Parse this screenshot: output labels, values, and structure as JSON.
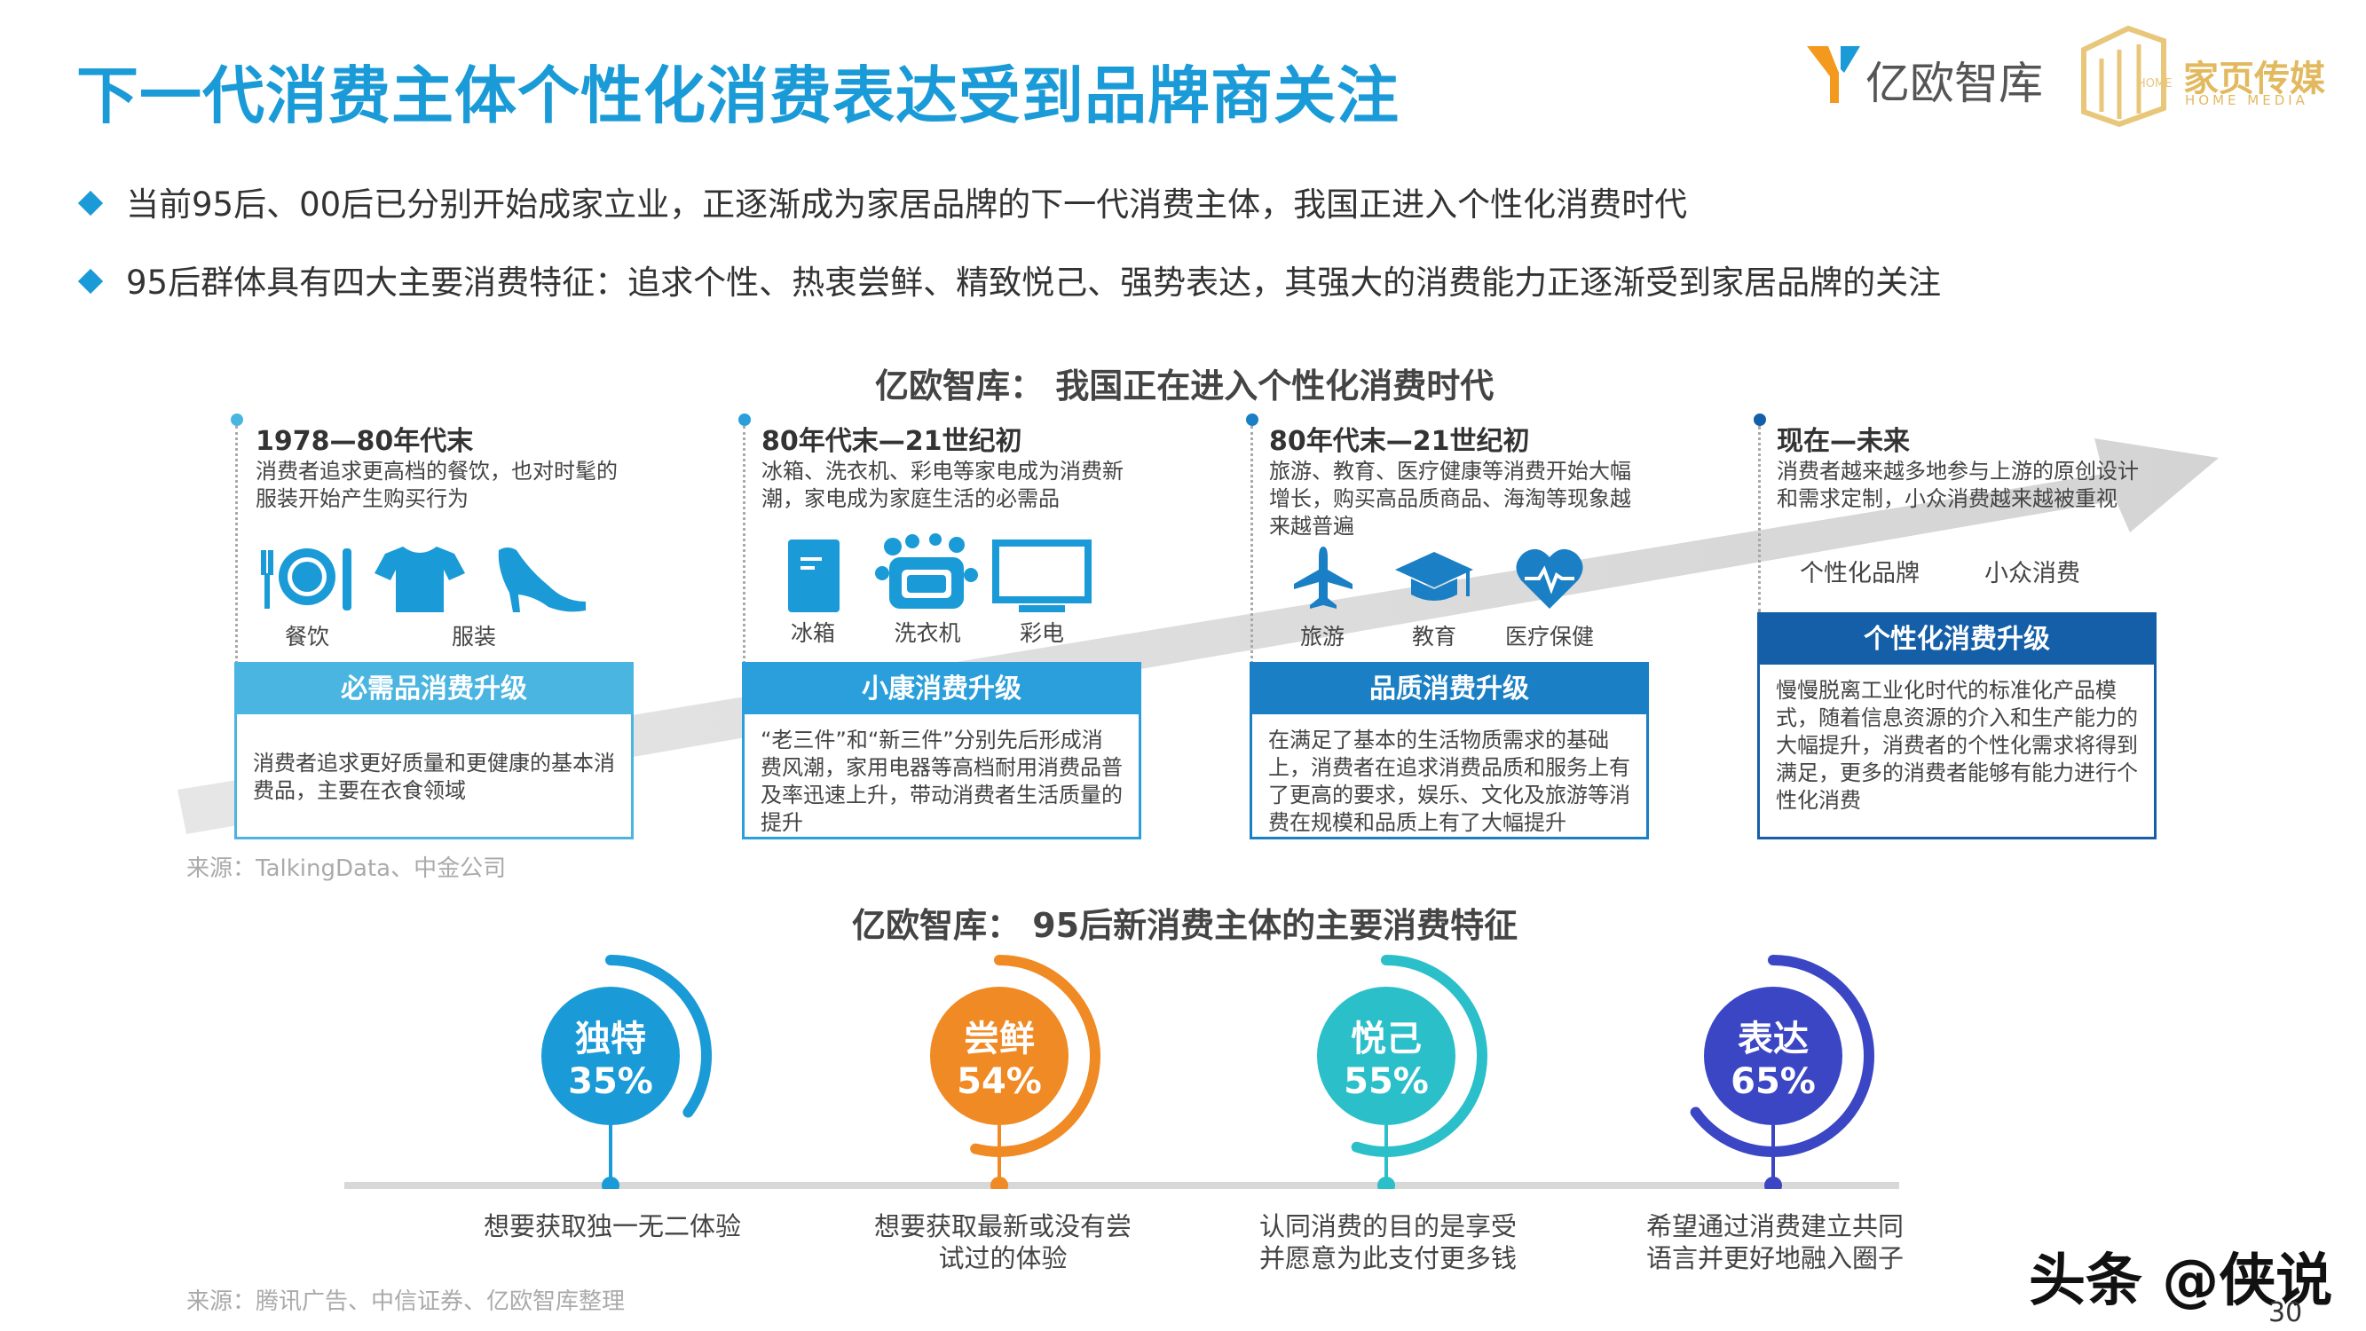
{
  "title": "下一代消费主体个性化消费表达受到品牌商关注",
  "logos": {
    "yiou": "亿欧智库",
    "homemedia_cn": "家页传媒",
    "homemedia_en": "HOME MEDIA",
    "homemedia_box": "HOME"
  },
  "bullets": [
    "当前95后、00后已分别开始成家立业，正逐渐成为家居品牌的下一代消费主体，我国正进入个性化消费时代",
    "95后群体具有四大主要消费特征：追求个性、热衷尝鲜、精致悦己、强势表达，其强大的消费能力正逐渐受到家居品牌的关注"
  ],
  "section1": {
    "title": "亿欧智库：  我国正在进入个性化消费时代",
    "eras": [
      {
        "period": "1978—80年代末",
        "desc": "消费者追求更高档的餐饮，也对时髦的服装开始产生购买行为",
        "icons": [
          {
            "icon": "plate-icon",
            "label": "餐饮"
          },
          {
            "icon": "tshirt-icon",
            "label": "服装"
          },
          {
            "icon": "heel-icon",
            "label": ""
          }
        ],
        "box_title": "必需品消费升级",
        "box_text": "消费者追求更好质量和更健康的基本消费品，主要在衣食领域",
        "color": "#4ab5e0"
      },
      {
        "period": "80年代末—21世纪初",
        "desc": "冰箱、洗衣机、彩电等家电成为消费新潮，家电成为家庭生活的必需品",
        "icons": [
          {
            "icon": "fridge-icon",
            "label": "冰箱"
          },
          {
            "icon": "washer-icon",
            "label": "洗衣机"
          },
          {
            "icon": "tv-icon",
            "label": "彩电"
          }
        ],
        "box_title": "小康消费升级",
        "box_text": "“老三件”和“新三件”分别先后形成消费风潮，家用电器等高档耐用消费品普及率迅速上升，带动消费者生活质量的提升",
        "color": "#2a9fdc"
      },
      {
        "period": "80年代末—21世纪初",
        "desc": "旅游、教育、医疗健康等消费开始大幅增长，购买高品质商品、海淘等现象越来越普遍",
        "icons": [
          {
            "icon": "plane-icon",
            "label": "旅游"
          },
          {
            "icon": "graduation-cap-icon",
            "label": "教育"
          },
          {
            "icon": "heart-pulse-icon",
            "label": "医疗保健"
          }
        ],
        "box_title": "品质消费升级",
        "box_text": "在满足了基本的生活物质需求的基础上，消费者在追求消费品质和服务上有了更高的要求，娱乐、文化及旅游等消费在规模和品质上有了大幅提升",
        "color": "#1a7fc4"
      },
      {
        "period": "现在—未来",
        "desc": "消费者越来越多地参与上游的原创设计和需求定制，小众消费越来越被重视",
        "tags": [
          "个性化品牌",
          "小众消费"
        ],
        "box_title": "个性化消费升级",
        "box_text": "慢慢脱离工业化时代的标准化产品模式，随着信息资源的介入和生产能力的大幅提升，消费者的个性化需求将得到满足，更多的消费者能够有能力进行个性化消费",
        "color": "#155fa8"
      }
    ],
    "source": "来源：TalkingData、中金公司"
  },
  "section2": {
    "title": "亿欧智库：  95后新消费主体的主要消费特征",
    "features": [
      {
        "name": "独特",
        "pct": "35%",
        "value": 35,
        "caption": "想要获取独一无二体验",
        "color": "#1a9bd7"
      },
      {
        "name": "尝鲜",
        "pct": "54%",
        "value": 54,
        "caption": "想要获取最新或没有尝试过的体验",
        "color": "#f08a24"
      },
      {
        "name": "悦己",
        "pct": "55%",
        "value": 55,
        "caption": "认同消费的目的是享受并愿意为此支付更多钱",
        "color": "#2bbfc9"
      },
      {
        "name": "表达",
        "pct": "65%",
        "value": 65,
        "caption": "希望通过消费建立共同语言并更好地融入圈子",
        "color": "#3b46c4"
      }
    ],
    "source": "来源：腾讯广告、中信证券、亿欧智库整理"
  },
  "watermark": "头条 @侠说",
  "page_number": "30"
}
